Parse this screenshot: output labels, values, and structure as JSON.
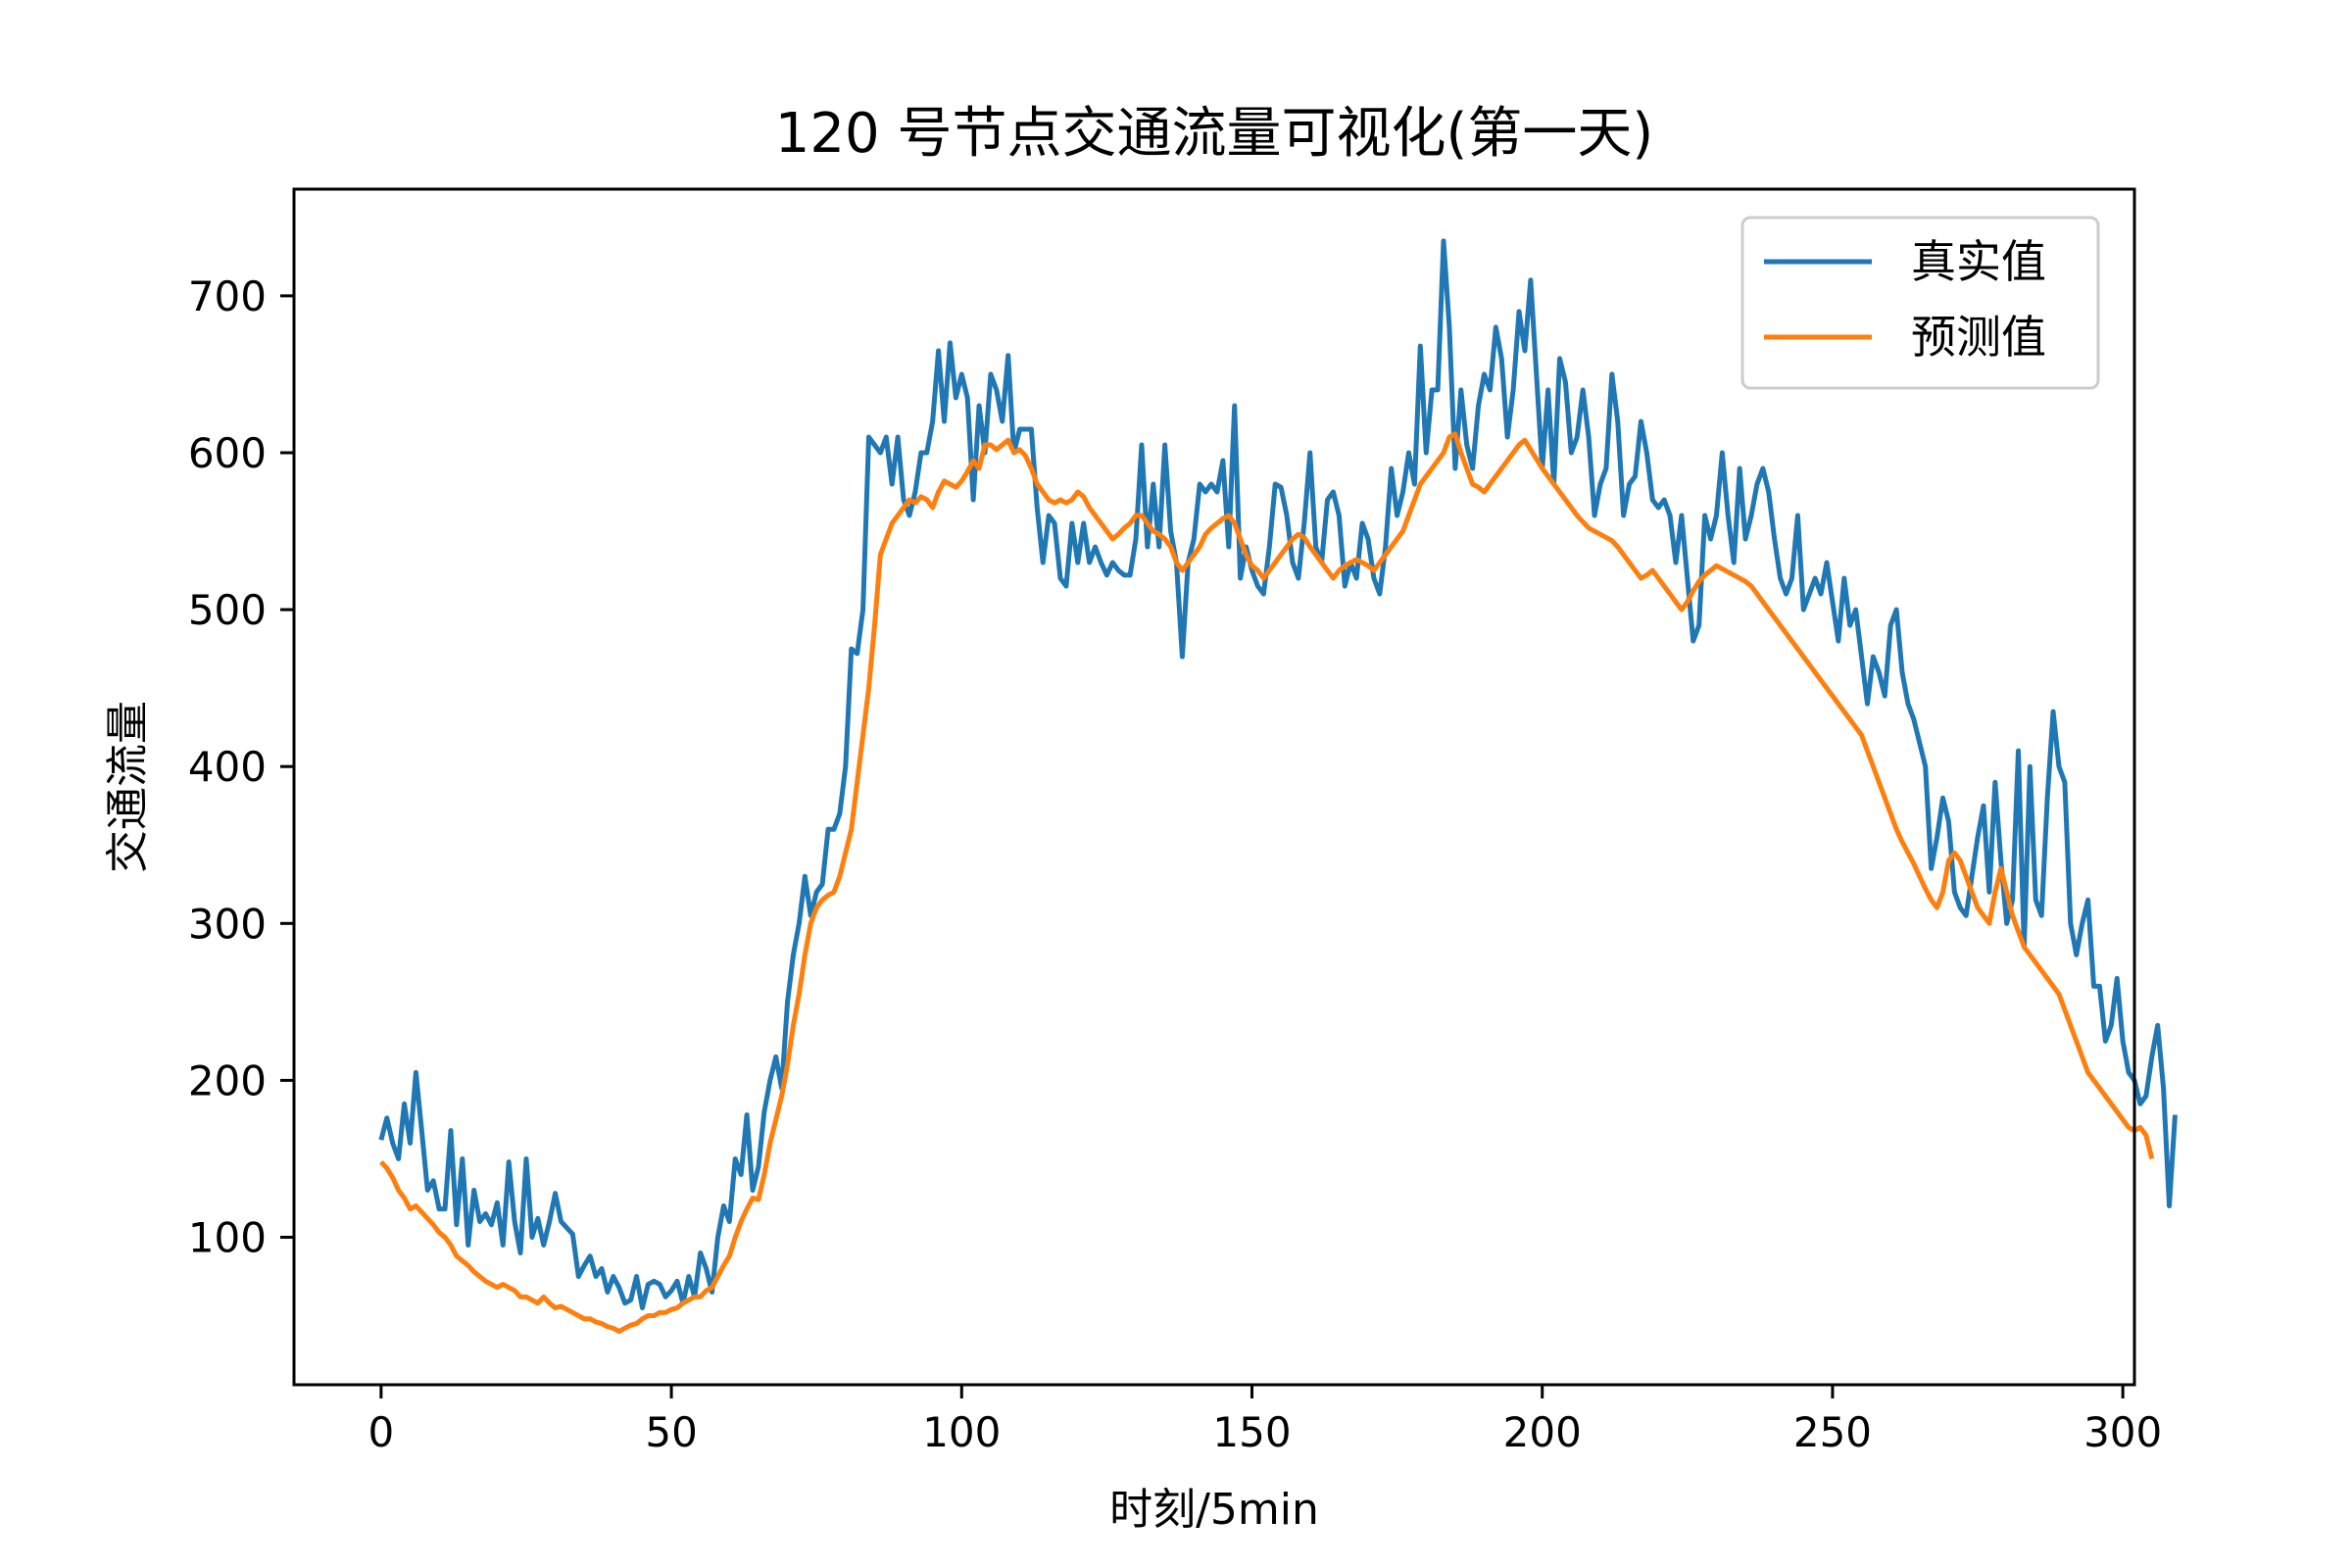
{
  "chart_data": {
    "type": "line",
    "title": "120 号节点交通流量可视化(第一天)",
    "xlabel": "时刻/5min",
    "ylabel": "交通流量",
    "xlim": [
      -15,
      302
    ],
    "ylim": [
      6,
      768
    ],
    "xticks": [
      0,
      50,
      100,
      150,
      200,
      250,
      300
    ],
    "yticks": [
      100,
      200,
      300,
      400,
      500,
      600,
      700
    ],
    "grid": false,
    "legend_position": "top-right",
    "series": [
      {
        "name": "真实值",
        "color": "#1f77b4",
        "x_start": 0,
        "values": [
          162,
          176,
          160,
          150,
          185,
          160,
          205,
          168,
          130,
          136,
          118,
          118,
          168,
          108,
          150,
          95,
          130,
          110,
          115,
          108,
          122,
          95,
          148,
          110,
          90,
          150,
          100,
          112,
          95,
          110,
          128,
          110,
          106,
          102,
          75,
          82,
          88,
          75,
          80,
          65,
          75,
          68,
          58,
          60,
          75,
          55,
          70,
          72,
          70,
          62,
          66,
          72,
          58,
          75,
          62,
          90,
          80,
          65,
          100,
          120,
          110,
          150,
          140,
          178,
          130,
          145,
          180,
          200,
          215,
          195,
          250,
          280,
          300,
          330,
          305,
          320,
          325,
          360,
          360,
          370,
          400,
          475,
          472,
          500,
          610,
          605,
          600,
          610,
          580,
          610,
          570,
          560,
          575,
          600,
          600,
          620,
          665,
          620,
          670,
          635,
          650,
          635,
          570,
          630,
          600,
          650,
          640,
          620,
          662,
          600,
          615,
          615,
          615,
          565,
          530,
          560,
          555,
          520,
          515,
          555,
          530,
          555,
          530,
          540,
          530,
          522,
          530,
          525,
          522,
          522,
          545,
          605,
          540,
          580,
          540,
          605,
          550,
          530,
          470,
          530,
          545,
          580,
          575,
          580,
          575,
          595,
          540,
          630,
          520,
          540,
          525,
          515,
          510,
          540,
          580,
          578,
          560,
          530,
          520,
          555,
          600,
          540,
          530,
          570,
          575,
          560,
          515,
          530,
          520,
          555,
          545,
          520,
          510,
          540,
          590,
          560,
          575,
          600,
          580,
          668,
          600,
          640,
          640,
          735,
          680,
          590,
          640,
          605,
          590,
          630,
          650,
          640,
          680,
          660,
          610,
          640,
          690,
          665,
          710,
          650,
          590,
          640,
          580,
          660,
          645,
          600,
          610,
          640,
          610,
          560,
          580,
          590,
          650,
          620,
          560,
          580,
          585,
          620,
          600,
          570,
          565,
          570,
          560,
          530,
          560,
          520,
          480,
          490,
          560,
          545,
          560,
          600,
          560,
          530,
          590,
          545,
          560,
          580,
          590,
          575,
          545,
          520,
          510,
          520,
          560,
          500,
          510,
          520,
          510,
          530,
          505,
          480,
          520,
          490,
          500,
          470,
          440,
          470,
          460,
          445,
          490,
          500,
          460,
          440,
          430,
          415,
          400,
          335,
          355,
          380,
          365,
          320,
          310,
          305,
          330,
          355,
          375,
          320,
          390,
          340,
          300,
          315,
          410,
          285,
          400,
          315,
          305,
          380,
          435,
          400,
          390,
          300,
          280,
          300,
          315,
          260,
          260,
          225,
          235,
          265,
          225,
          205,
          200,
          185,
          190,
          215,
          235,
          195,
          120,
          178
        ]
      },
      {
        "name": "预测值",
        "color": "#ff7f0e",
        "x_start": 0,
        "values": [
          148,
          144,
          138,
          130,
          125,
          118,
          120,
          116,
          112,
          108,
          103,
          100,
          95,
          88,
          85,
          82,
          78,
          75,
          72,
          70,
          68,
          70,
          68,
          66,
          62,
          62,
          60,
          58,
          62,
          58,
          55,
          56,
          54,
          52,
          50,
          48,
          48,
          46,
          45,
          43,
          42,
          40,
          42,
          44,
          45,
          48,
          50,
          50,
          52,
          52,
          54,
          55,
          58,
          60,
          62,
          62,
          66,
          68,
          75,
          82,
          88,
          100,
          110,
          118,
          125,
          124,
          140,
          160,
          175,
          190,
          210,
          235,
          255,
          280,
          300,
          310,
          315,
          318,
          320,
          330,
          345,
          360,
          390,
          420,
          450,
          490,
          535,
          545,
          555,
          560,
          565,
          570,
          568,
          572,
          570,
          565,
          575,
          582,
          580,
          578,
          582,
          588,
          595,
          590,
          605,
          605,
          602,
          605,
          608,
          600,
          602,
          598,
          590,
          580,
          575,
          570,
          568,
          570,
          568,
          570,
          575,
          572,
          565,
          560,
          555,
          550,
          545,
          548,
          552,
          555,
          560,
          560,
          555,
          550,
          548,
          545,
          540,
          530,
          525,
          530,
          535,
          540,
          548,
          552,
          555,
          558,
          560,
          555,
          545,
          535,
          528,
          525,
          520,
          525,
          530,
          535,
          540,
          545,
          548,
          546,
          540,
          535,
          530,
          525,
          520,
          525,
          528,
          530,
          532,
          530,
          528,
          525,
          530,
          535,
          540,
          545,
          550,
          560,
          570,
          580,
          585,
          590,
          595,
          600,
          610,
          612,
          600,
          590,
          580,
          578,
          575,
          580,
          585,
          590,
          595,
          600,
          605,
          608,
          602,
          596,
          590,
          585,
          580,
          575,
          570,
          565,
          560,
          556,
          552,
          550,
          548,
          546,
          544,
          540,
          535,
          530,
          525,
          520,
          522,
          525,
          520,
          515,
          510,
          505,
          500,
          505,
          512,
          518,
          522,
          525,
          528,
          526,
          524,
          522,
          520,
          518,
          515,
          510,
          505,
          500,
          495,
          490,
          485,
          480,
          475,
          470,
          465,
          460,
          455,
          450,
          445,
          440,
          435,
          430,
          425,
          420,
          410,
          400,
          390,
          380,
          370,
          360,
          352,
          345,
          338,
          330,
          322,
          315,
          310,
          320,
          340,
          345,
          340,
          330,
          320,
          310,
          305,
          300,
          320,
          335,
          320,
          305,
          295,
          285,
          280,
          275,
          270,
          265,
          260,
          255,
          245,
          235,
          225,
          215,
          205,
          200,
          195,
          190,
          185,
          180,
          175,
          170,
          168,
          170,
          165,
          150
        ]
      }
    ]
  }
}
